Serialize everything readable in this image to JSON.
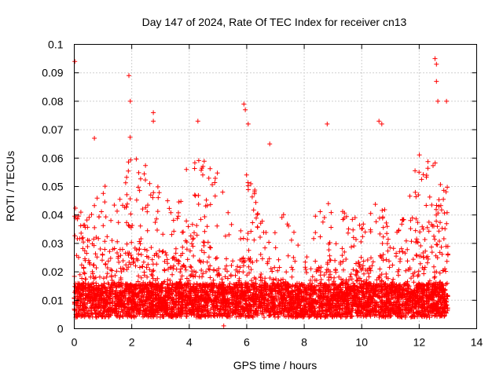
{
  "chart_data": {
    "type": "scatter",
    "title": "Day 147 of 2024, Rate Of TEC Index for receiver cn13",
    "xlabel": "GPS time / hours",
    "ylabel": "ROTI / TECUs",
    "xlim": [
      0,
      14
    ],
    "ylim": [
      0,
      0.1
    ],
    "xticks": [
      "0",
      "2",
      "4",
      "6",
      "8",
      "10",
      "12",
      "14"
    ],
    "yticks": [
      "0",
      "0.01",
      "0.02",
      "0.03",
      "0.04",
      "0.05",
      "0.06",
      "0.07",
      "0.08",
      "0.09",
      "0.1"
    ],
    "grid": true,
    "marker": "plus",
    "color": "#ff0000",
    "x_data_range": [
      0,
      13
    ],
    "notable_points": [
      {
        "x": 0.02,
        "y": 0.094
      },
      {
        "x": 0.7,
        "y": 0.067
      },
      {
        "x": 1.9,
        "y": 0.089
      },
      {
        "x": 1.95,
        "y": 0.08
      },
      {
        "x": 2.75,
        "y": 0.076
      },
      {
        "x": 2.75,
        "y": 0.073
      },
      {
        "x": 4.3,
        "y": 0.073
      },
      {
        "x": 5.9,
        "y": 0.079
      },
      {
        "x": 5.95,
        "y": 0.077
      },
      {
        "x": 6.05,
        "y": 0.072
      },
      {
        "x": 6.8,
        "y": 0.065
      },
      {
        "x": 8.8,
        "y": 0.072
      },
      {
        "x": 10.6,
        "y": 0.073
      },
      {
        "x": 10.7,
        "y": 0.072
      },
      {
        "x": 12.55,
        "y": 0.095
      },
      {
        "x": 12.6,
        "y": 0.093
      },
      {
        "x": 12.6,
        "y": 0.087
      },
      {
        "x": 12.65,
        "y": 0.08
      },
      {
        "x": 12.95,
        "y": 0.08
      },
      {
        "x": 5.2,
        "y": 0.001
      }
    ],
    "activity_profile": [
      {
        "x": 0.0,
        "max": 0.043,
        "dense_max": 0.035
      },
      {
        "x": 0.5,
        "max": 0.04,
        "dense_max": 0.03
      },
      {
        "x": 1.0,
        "max": 0.052,
        "dense_max": 0.03
      },
      {
        "x": 1.5,
        "max": 0.048,
        "dense_max": 0.028
      },
      {
        "x": 2.0,
        "max": 0.07,
        "dense_max": 0.032
      },
      {
        "x": 2.5,
        "max": 0.058,
        "dense_max": 0.03
      },
      {
        "x": 3.0,
        "max": 0.052,
        "dense_max": 0.028
      },
      {
        "x": 3.5,
        "max": 0.04,
        "dense_max": 0.025
      },
      {
        "x": 4.0,
        "max": 0.06,
        "dense_max": 0.035
      },
      {
        "x": 4.5,
        "max": 0.06,
        "dense_max": 0.035
      },
      {
        "x": 5.0,
        "max": 0.058,
        "dense_max": 0.025
      },
      {
        "x": 5.5,
        "max": 0.04,
        "dense_max": 0.02
      },
      {
        "x": 6.0,
        "max": 0.06,
        "dense_max": 0.028
      },
      {
        "x": 6.5,
        "max": 0.04,
        "dense_max": 0.02
      },
      {
        "x": 7.0,
        "max": 0.035,
        "dense_max": 0.018
      },
      {
        "x": 7.5,
        "max": 0.045,
        "dense_max": 0.017
      },
      {
        "x": 8.0,
        "max": 0.022,
        "dense_max": 0.014
      },
      {
        "x": 8.5,
        "max": 0.045,
        "dense_max": 0.022
      },
      {
        "x": 9.0,
        "max": 0.045,
        "dense_max": 0.025
      },
      {
        "x": 9.5,
        "max": 0.04,
        "dense_max": 0.022
      },
      {
        "x": 10.0,
        "max": 0.045,
        "dense_max": 0.025
      },
      {
        "x": 10.5,
        "max": 0.045,
        "dense_max": 0.025
      },
      {
        "x": 11.0,
        "max": 0.04,
        "dense_max": 0.025
      },
      {
        "x": 11.5,
        "max": 0.045,
        "dense_max": 0.03
      },
      {
        "x": 12.0,
        "max": 0.062,
        "dense_max": 0.035
      },
      {
        "x": 12.5,
        "max": 0.06,
        "dense_max": 0.045
      },
      {
        "x": 13.0,
        "max": 0.05,
        "dense_max": 0.04
      }
    ]
  }
}
